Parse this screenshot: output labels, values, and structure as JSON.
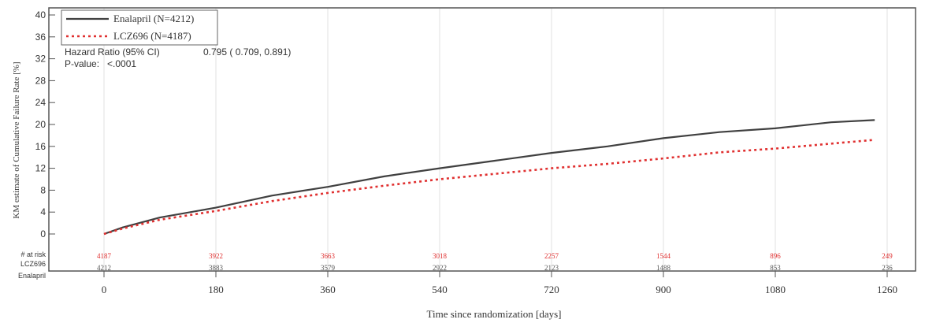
{
  "chart_data": {
    "type": "line",
    "xlabel": "Time since randomization [days]",
    "ylabel": "KM estimate of Cumulative Failure Rate [%]",
    "xlim": [
      0,
      1260
    ],
    "ylim": [
      0,
      40
    ],
    "x_ticks": [
      0,
      180,
      360,
      540,
      720,
      900,
      1080,
      1260
    ],
    "y_ticks": [
      0,
      4,
      8,
      12,
      16,
      20,
      24,
      28,
      32,
      36,
      40
    ],
    "grid": "vertical",
    "legend_position": "top-left",
    "series": [
      {
        "name": "Enalapril (N=4212)",
        "color": "#404040",
        "style": "solid",
        "x": [
          0,
          30,
          90,
          180,
          270,
          360,
          450,
          540,
          630,
          720,
          810,
          900,
          990,
          1080,
          1170,
          1240
        ],
        "y": [
          0,
          1.2,
          3.0,
          4.8,
          7.0,
          8.6,
          10.5,
          12.0,
          13.4,
          14.8,
          16.0,
          17.5,
          18.6,
          19.3,
          20.4,
          20.8
        ]
      },
      {
        "name": "LCZ696 (N=4187)",
        "color": "#e03030",
        "style": "dotted",
        "x": [
          0,
          30,
          90,
          180,
          270,
          360,
          450,
          540,
          630,
          720,
          810,
          900,
          990,
          1080,
          1170,
          1240
        ],
        "y": [
          0,
          1.0,
          2.6,
          4.2,
          6.0,
          7.5,
          8.8,
          10.0,
          11.0,
          12.0,
          12.8,
          13.8,
          14.9,
          15.6,
          16.5,
          17.2
        ]
      }
    ],
    "annotations": {
      "hazard_label": "Hazard Ratio (95% CI)",
      "hazard_value": "0.795 ( 0.709,  0.891)",
      "pvalue_label": "P-value:",
      "pvalue_value": "<.0001"
    },
    "at_risk": {
      "title": "# at risk",
      "x": [
        0,
        180,
        360,
        540,
        720,
        900,
        1080,
        1260
      ],
      "rows": [
        {
          "label": "LCZ696",
          "color": "#e03030",
          "values": [
            "4187",
            "3922",
            "3663",
            "3018",
            "2257",
            "1544",
            "896",
            "249"
          ]
        },
        {
          "label": "Enalapril",
          "color": "#555555",
          "values": [
            "4212",
            "3883",
            "3579",
            "2922",
            "2123",
            "1488",
            "853",
            "236"
          ]
        }
      ]
    }
  }
}
